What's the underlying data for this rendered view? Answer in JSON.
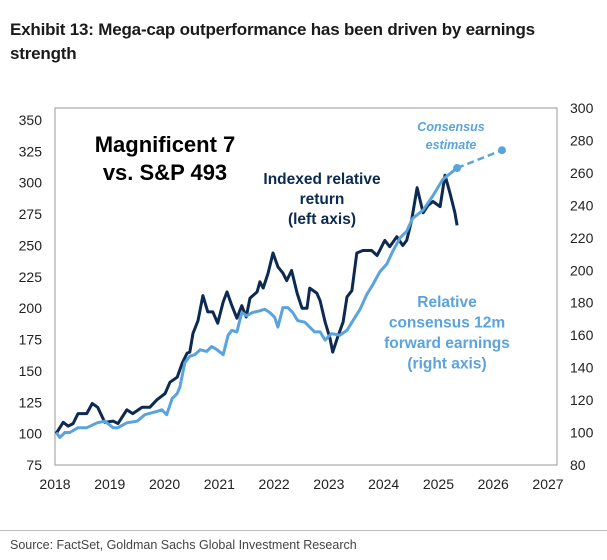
{
  "title": "Exhibit 13: Mega-cap outperformance has been driven by earnings strength",
  "source": "Source: FactSet, Goldman Sachs Global Investment Research",
  "colors": {
    "dark": "#0c2a52",
    "light": "#5ba3dd"
  },
  "chart_data": {
    "type": "line",
    "xlim": [
      2018,
      2027
    ],
    "x_ticks": [
      "2018",
      "2019",
      "2020",
      "2021",
      "2022",
      "2023",
      "2024",
      "2025",
      "2026",
      "2027"
    ],
    "ylim_left": [
      75,
      350
    ],
    "y_ticks_left": [
      "350",
      "325",
      "300",
      "275",
      "250",
      "225",
      "200",
      "175",
      "150",
      "125",
      "100",
      "75"
    ],
    "ylim_right": [
      80,
      300
    ],
    "y_ticks_right": [
      "300",
      "280",
      "260",
      "240",
      "220",
      "200",
      "180",
      "160",
      "140",
      "120",
      "100",
      "80"
    ],
    "annotations": {
      "main_label": [
        "Magnificent 7",
        "vs. S&P 493"
      ],
      "return_label": [
        "Indexed relative",
        "return",
        "(left axis)"
      ],
      "earnings_label": [
        "Relative",
        "consensus 12m",
        "forward earnings",
        "(right axis)"
      ],
      "estimate_label": [
        "Consensus",
        "estimate"
      ]
    },
    "series": [
      {
        "name": "Indexed relative return (left axis)",
        "axis": "left",
        "points": [
          [
            2018.02,
            100
          ],
          [
            2018.15,
            109
          ],
          [
            2018.24,
            106
          ],
          [
            2018.33,
            108
          ],
          [
            2018.42,
            116
          ],
          [
            2018.58,
            116
          ],
          [
            2018.68,
            124
          ],
          [
            2018.78,
            121
          ],
          [
            2018.91,
            109
          ],
          [
            2019.06,
            110
          ],
          [
            2019.15,
            108
          ],
          [
            2019.31,
            119
          ],
          [
            2019.42,
            116
          ],
          [
            2019.59,
            121
          ],
          [
            2019.73,
            121
          ],
          [
            2019.86,
            127
          ],
          [
            2020.01,
            132
          ],
          [
            2020.1,
            141
          ],
          [
            2020.23,
            145
          ],
          [
            2020.32,
            156
          ],
          [
            2020.41,
            164
          ],
          [
            2020.46,
            165
          ],
          [
            2020.52,
            180
          ],
          [
            2020.61,
            190
          ],
          [
            2020.7,
            210
          ],
          [
            2020.79,
            197
          ],
          [
            2020.88,
            197
          ],
          [
            2020.97,
            188
          ],
          [
            2021.07,
            205
          ],
          [
            2021.14,
            213
          ],
          [
            2021.23,
            202
          ],
          [
            2021.32,
            192
          ],
          [
            2021.41,
            202
          ],
          [
            2021.49,
            193
          ],
          [
            2021.56,
            208
          ],
          [
            2021.69,
            213
          ],
          [
            2021.74,
            221
          ],
          [
            2021.8,
            216
          ],
          [
            2021.89,
            228
          ],
          [
            2021.98,
            244
          ],
          [
            2022.07,
            233
          ],
          [
            2022.16,
            228
          ],
          [
            2022.23,
            222
          ],
          [
            2022.32,
            230
          ],
          [
            2022.42,
            212
          ],
          [
            2022.51,
            200
          ],
          [
            2022.6,
            200
          ],
          [
            2022.65,
            216
          ],
          [
            2022.78,
            212
          ],
          [
            2022.84,
            206
          ],
          [
            2022.93,
            189
          ],
          [
            2023.02,
            176
          ],
          [
            2023.07,
            165
          ],
          [
            2023.16,
            177
          ],
          [
            2023.26,
            189
          ],
          [
            2023.33,
            209
          ],
          [
            2023.42,
            214
          ],
          [
            2023.51,
            244
          ],
          [
            2023.62,
            246
          ],
          [
            2023.78,
            246
          ],
          [
            2023.88,
            242
          ],
          [
            2024.02,
            254
          ],
          [
            2024.11,
            249
          ],
          [
            2024.24,
            257
          ],
          [
            2024.35,
            250
          ],
          [
            2024.42,
            254
          ],
          [
            2024.51,
            270
          ],
          [
            2024.61,
            296
          ],
          [
            2024.72,
            276
          ],
          [
            2024.81,
            282
          ],
          [
            2024.9,
            285
          ],
          [
            2025.03,
            281
          ],
          [
            2025.12,
            306
          ],
          [
            2025.21,
            292
          ],
          [
            2025.3,
            276
          ],
          [
            2025.34,
            266
          ]
        ]
      },
      {
        "name": "Relative consensus 12m forward earnings (right axis)",
        "axis": "right",
        "points": [
          [
            2018.02,
            100
          ],
          [
            2018.09,
            97
          ],
          [
            2018.18,
            100
          ],
          [
            2018.27,
            100
          ],
          [
            2018.42,
            103
          ],
          [
            2018.58,
            103
          ],
          [
            2018.77,
            106
          ],
          [
            2018.91,
            107
          ],
          [
            2019.06,
            103
          ],
          [
            2019.15,
            103
          ],
          [
            2019.31,
            106
          ],
          [
            2019.5,
            107
          ],
          [
            2019.64,
            111
          ],
          [
            2019.86,
            113
          ],
          [
            2019.95,
            114
          ],
          [
            2020.04,
            111
          ],
          [
            2020.14,
            121
          ],
          [
            2020.23,
            124
          ],
          [
            2020.28,
            128
          ],
          [
            2020.37,
            143
          ],
          [
            2020.46,
            147
          ],
          [
            2020.55,
            148
          ],
          [
            2020.65,
            151
          ],
          [
            2020.77,
            150
          ],
          [
            2020.86,
            153
          ],
          [
            2020.96,
            151
          ],
          [
            2021.07,
            148
          ],
          [
            2021.16,
            160
          ],
          [
            2021.23,
            163
          ],
          [
            2021.32,
            162
          ],
          [
            2021.41,
            174
          ],
          [
            2021.5,
            172
          ],
          [
            2021.61,
            174
          ],
          [
            2021.74,
            175
          ],
          [
            2021.83,
            176
          ],
          [
            2021.92,
            174
          ],
          [
            2022.01,
            171
          ],
          [
            2022.07,
            165
          ],
          [
            2022.16,
            177
          ],
          [
            2022.25,
            177
          ],
          [
            2022.34,
            174
          ],
          [
            2022.43,
            169
          ],
          [
            2022.56,
            168
          ],
          [
            2022.65,
            165
          ],
          [
            2022.74,
            162
          ],
          [
            2022.84,
            162
          ],
          [
            2022.93,
            157
          ],
          [
            2023.05,
            161
          ],
          [
            2023.2,
            160
          ],
          [
            2023.33,
            163
          ],
          [
            2023.44,
            169
          ],
          [
            2023.57,
            176
          ],
          [
            2023.69,
            185
          ],
          [
            2023.8,
            191
          ],
          [
            2023.93,
            199
          ],
          [
            2024.06,
            204
          ],
          [
            2024.17,
            212
          ],
          [
            2024.3,
            220
          ],
          [
            2024.42,
            224
          ],
          [
            2024.53,
            232
          ],
          [
            2024.72,
            237
          ],
          [
            2024.9,
            246
          ],
          [
            2025.08,
            256
          ],
          [
            2025.34,
            263
          ]
        ]
      },
      {
        "name": "Consensus estimate",
        "axis": "right",
        "style": "dashed",
        "points": [
          [
            2025.34,
            263
          ],
          [
            2026.16,
            274
          ]
        ]
      }
    ]
  }
}
